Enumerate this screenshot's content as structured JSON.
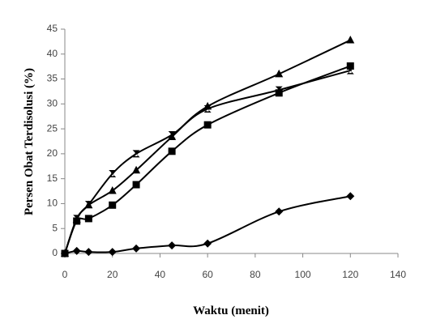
{
  "chart_data": {
    "type": "line",
    "x_label": "Waktu (menit)",
    "y_label": "Persen Obat Terdisolusi (%)",
    "xlim": [
      0,
      140
    ],
    "xticks": [
      0,
      20,
      40,
      60,
      80,
      100,
      120,
      140
    ],
    "ylim": [
      0,
      45
    ],
    "yticks": [
      0,
      5,
      10,
      15,
      20,
      25,
      30,
      35,
      40,
      45
    ],
    "grid": false,
    "series": [
      {
        "color": "#000000",
        "marker": "diamond",
        "x": [
          0,
          5,
          10,
          20,
          30,
          45,
          60,
          90,
          120
        ],
        "values": [
          0,
          0.5,
          0.3,
          0.3,
          1,
          1.6,
          2,
          8.4,
          11.5
        ]
      },
      {
        "color": "#000000",
        "marker": "square",
        "x": [
          0,
          5,
          10,
          20,
          30,
          45,
          60,
          90,
          120
        ],
        "values": [
          0,
          6.5,
          7,
          9.7,
          13.8,
          20.5,
          25.8,
          32.2,
          37.6
        ]
      },
      {
        "color": "#000000",
        "marker": "triangle",
        "x": [
          0,
          5,
          10,
          20,
          30,
          45,
          60,
          90,
          120
        ],
        "values": [
          0,
          6.8,
          9.7,
          12.6,
          16.7,
          23.4,
          29.5,
          36,
          42.8
        ]
      },
      {
        "color": "#000000",
        "marker": "hourglass",
        "x": [
          0,
          5,
          10,
          20,
          30,
          45,
          60,
          90,
          120
        ],
        "values": [
          0,
          7,
          9.8,
          16,
          20,
          23.8,
          29,
          32.8,
          36.7
        ]
      }
    ]
  }
}
